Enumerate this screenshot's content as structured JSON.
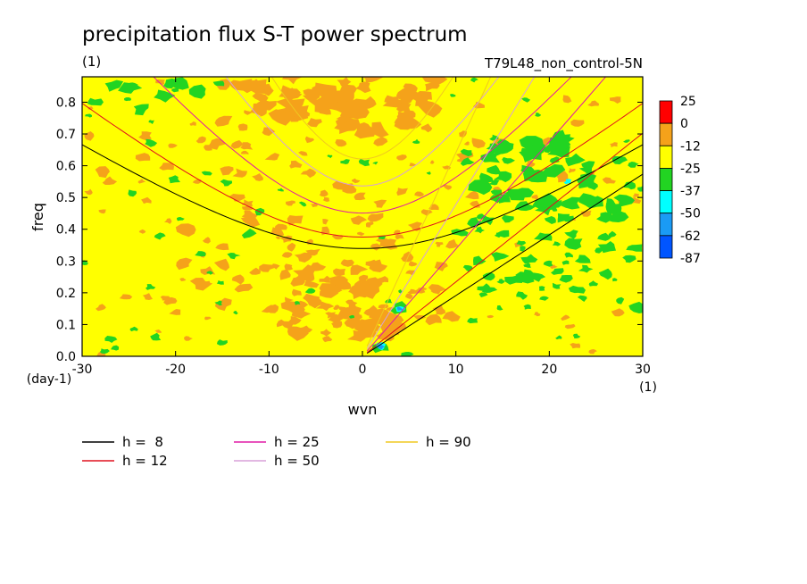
{
  "chart_data": {
    "type": "heatmap",
    "title": "precipitation flux S-T power spectrum",
    "subtitle_left": "(1)",
    "subtitle_right": "T79L48_non_control-5N",
    "xlabel": "wvn",
    "ylabel": "freq",
    "x_unit": "(1)",
    "y_unit": "(day-1)",
    "xlim": [
      -30,
      30
    ],
    "ylim": [
      0,
      0.88
    ],
    "xticks": [
      -30,
      -20,
      -10,
      0,
      10,
      20,
      30
    ],
    "yticks": [
      0.0,
      0.1,
      0.2,
      0.3,
      0.4,
      0.5,
      0.6,
      0.7,
      0.8
    ],
    "colorbar": {
      "levels": [
        "25",
        "0",
        "-12",
        "-25",
        "-37",
        "-50",
        "-62",
        "-87"
      ],
      "colors": [
        "#ff0000",
        "#f5a21a",
        "#ffff00",
        "#22d422",
        "#00ffff",
        "#1a9bf5",
        "#0055ff"
      ]
    },
    "dispersion_curves": [
      {
        "name": "h =  8",
        "color": "#000000",
        "h": 8
      },
      {
        "name": "h = 12",
        "color": "#e0101e",
        "h": 12
      },
      {
        "name": "h = 25",
        "color": "#e01aa6",
        "h": 25
      },
      {
        "name": "h = 50",
        "color": "#d8a0d8",
        "h": 50
      },
      {
        "name": "h = 90",
        "color": "#f0c820",
        "h": 90
      }
    ]
  }
}
